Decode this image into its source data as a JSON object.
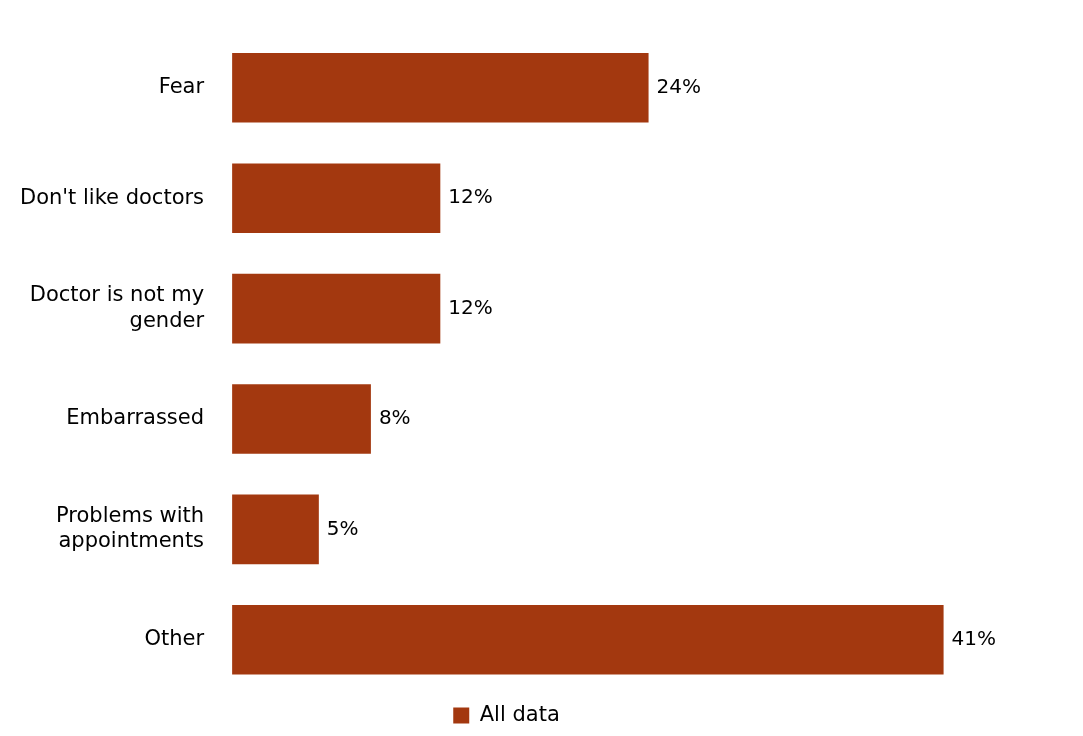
{
  "chart_data": {
    "type": "bar",
    "orientation": "horizontal",
    "categories": [
      "Fear",
      "Don't like doctors",
      "Doctor is not my gender",
      "Embarrassed",
      "Problems with appointments",
      "Other"
    ],
    "series": [
      {
        "name": "All data",
        "color": "#a3380f",
        "values": [
          24,
          12,
          12,
          8,
          5,
          41
        ],
        "value_labels": [
          "24%",
          "12%",
          "12%",
          "8%",
          "5%",
          "41%"
        ]
      }
    ],
    "legend": "bottom"
  }
}
